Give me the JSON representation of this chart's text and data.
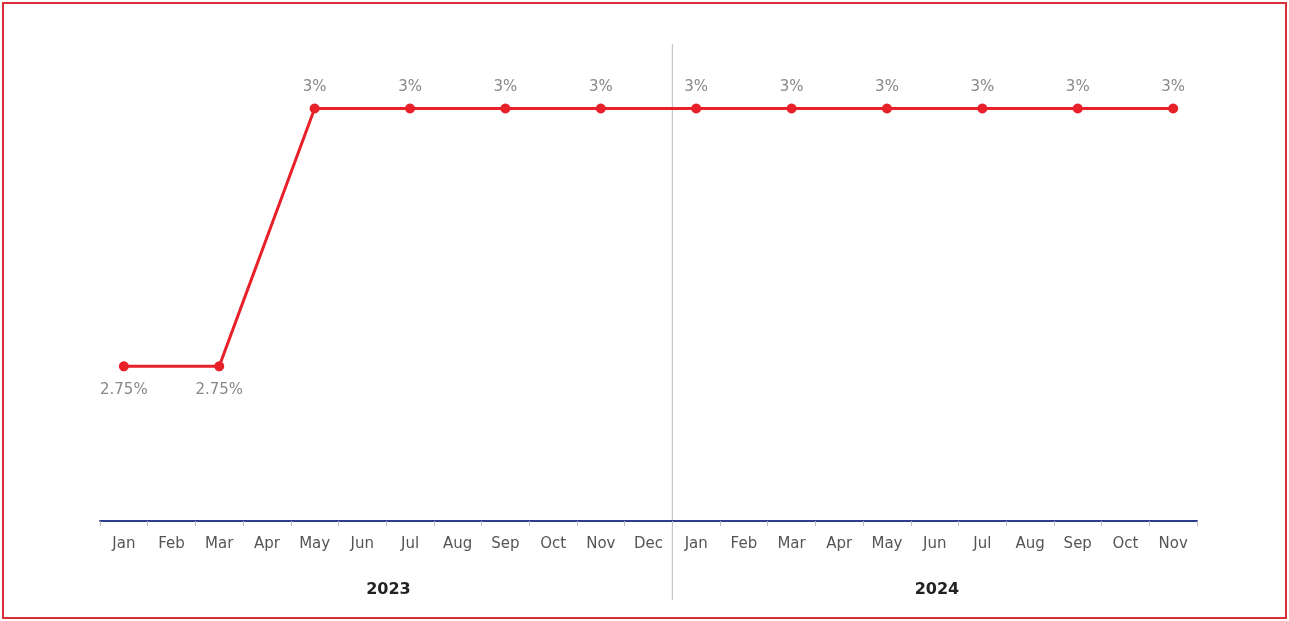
{
  "chart_data": {
    "type": "line",
    "categories": [
      "Jan",
      "Feb",
      "Mar",
      "Apr",
      "May",
      "Jun",
      "Jul",
      "Aug",
      "Sep",
      "Oct",
      "Nov",
      "Dec",
      "Jan",
      "Feb",
      "Mar",
      "Apr",
      "May",
      "Jun",
      "Jul",
      "Aug",
      "Sep",
      "Oct",
      "Nov"
    ],
    "series": [
      {
        "color": "#e8202a",
        "values": [
          2.75,
          null,
          2.75,
          null,
          3,
          null,
          3,
          null,
          3,
          null,
          3,
          null,
          3,
          null,
          3,
          null,
          3,
          null,
          3,
          null,
          3,
          null,
          3
        ],
        "value_labels": [
          "2.75%",
          null,
          "2.75%",
          null,
          "3%",
          null,
          "3%",
          null,
          "3%",
          null,
          "3%",
          null,
          "3%",
          null,
          "3%",
          null,
          "3%",
          null,
          "3%",
          null,
          "3%",
          null,
          "3%"
        ]
      }
    ],
    "annotations": [
      "2023",
      "2024"
    ],
    "marker": "circle"
  }
}
